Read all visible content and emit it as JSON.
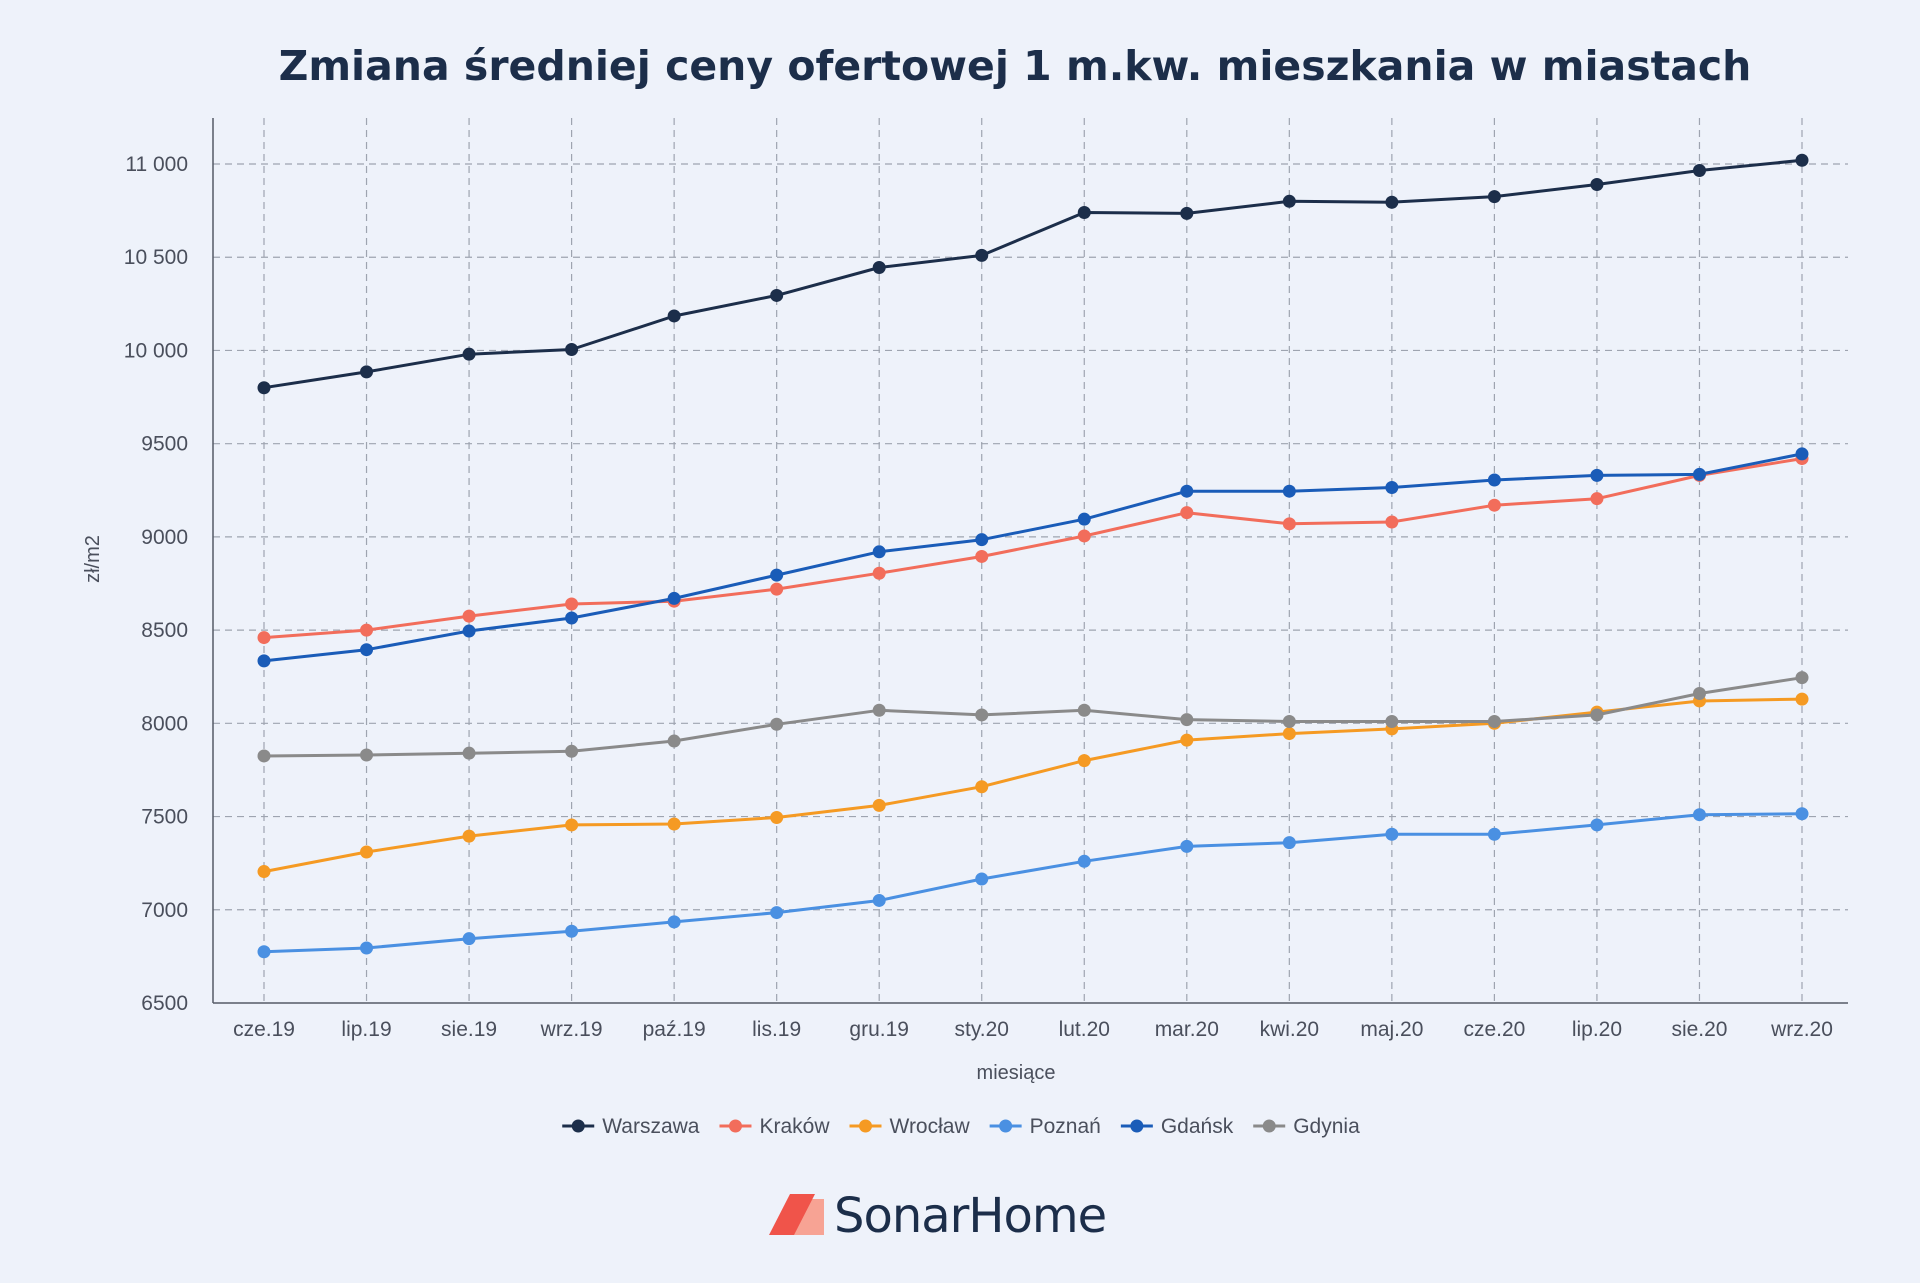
{
  "chart_data": {
    "type": "line",
    "title": "Zmiana średniej ceny ofertowej 1 m.kw. mieszkania w miastach",
    "xlabel": "miesiące",
    "ylabel": "zł/m2",
    "ylim": [
      6500,
      11000
    ],
    "yticks": [
      6500,
      7000,
      7500,
      8000,
      8500,
      9000,
      9500,
      10000,
      10500,
      11000
    ],
    "ytick_labels": [
      "6500",
      "7000",
      "7500",
      "8000",
      "8500",
      "9000",
      "9500",
      "10 000",
      "10 500",
      "11 000"
    ],
    "categories": [
      "cze.19",
      "lip.19",
      "sie.19",
      "wrz.19",
      "paź.19",
      "lis.19",
      "gru.19",
      "sty.20",
      "lut.20",
      "mar.20",
      "kwi.20",
      "maj.20",
      "cze.20",
      "lip.20",
      "sie.20",
      "wrz.20"
    ],
    "grid": true,
    "legend_position": "bottom",
    "series": [
      {
        "name": "Warszawa",
        "color": "#1c2e4a",
        "values": [
          9800,
          9885,
          9980,
          10005,
          10185,
          10295,
          10445,
          10510,
          10740,
          10735,
          10800,
          10795,
          10825,
          10890,
          10965,
          11020
        ]
      },
      {
        "name": "Kraków",
        "color": "#f26d5b",
        "values": [
          8460,
          8500,
          8575,
          8640,
          8655,
          8720,
          8805,
          8895,
          9005,
          9130,
          9070,
          9080,
          9170,
          9205,
          9330,
          9420
        ]
      },
      {
        "name": "Wrocław",
        "color": "#f59a23",
        "values": [
          7205,
          7310,
          7395,
          7455,
          7460,
          7495,
          7560,
          7660,
          7800,
          7910,
          7945,
          7970,
          8000,
          8060,
          8120,
          8130
        ]
      },
      {
        "name": "Poznań",
        "color": "#4a90e2",
        "values": [
          6775,
          6795,
          6845,
          6885,
          6935,
          6985,
          7050,
          7165,
          7260,
          7340,
          7360,
          7405,
          7405,
          7455,
          7510,
          7515
        ]
      },
      {
        "name": "Gdańsk",
        "color": "#1a5cb8",
        "values": [
          8335,
          8395,
          8495,
          8565,
          8670,
          8795,
          8920,
          8985,
          9095,
          9245,
          9245,
          9265,
          9305,
          9330,
          9335,
          9445
        ]
      },
      {
        "name": "Gdynia",
        "color": "#8a8a8a",
        "values": [
          7825,
          7830,
          7840,
          7850,
          7905,
          7995,
          8070,
          8045,
          8070,
          8020,
          8010,
          8010,
          8010,
          8045,
          8160,
          8245
        ]
      }
    ]
  },
  "brand": {
    "name": "SonarHome",
    "logo_colors": [
      "#f0544a",
      "#f7a394"
    ]
  }
}
